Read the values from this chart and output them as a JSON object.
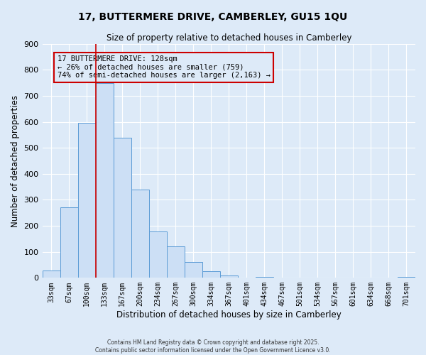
{
  "title_line1": "17, BUTTERMERE DRIVE, CAMBERLEY, GU15 1QU",
  "title_line2": "Size of property relative to detached houses in Camberley",
  "xlabel": "Distribution of detached houses by size in Camberley",
  "ylabel": "Number of detached properties",
  "bar_labels": [
    "33sqm",
    "67sqm",
    "100sqm",
    "133sqm",
    "167sqm",
    "200sqm",
    "234sqm",
    "267sqm",
    "300sqm",
    "334sqm",
    "367sqm",
    "401sqm",
    "434sqm",
    "467sqm",
    "501sqm",
    "534sqm",
    "567sqm",
    "601sqm",
    "634sqm",
    "668sqm",
    "701sqm"
  ],
  "bar_values": [
    27,
    270,
    597,
    750,
    540,
    340,
    178,
    120,
    62,
    25,
    10,
    0,
    5,
    0,
    0,
    0,
    0,
    0,
    0,
    0,
    5
  ],
  "bar_color": "#ccdff5",
  "bar_edge_color": "#5b9bd5",
  "ylim": [
    0,
    900
  ],
  "yticks": [
    0,
    100,
    200,
    300,
    400,
    500,
    600,
    700,
    800,
    900
  ],
  "vline_x_index": 3,
  "vline_color": "#cc0000",
  "annotation_title": "17 BUTTERMERE DRIVE: 128sqm",
  "annotation_line2": "← 26% of detached houses are smaller (759)",
  "annotation_line3": "74% of semi-detached houses are larger (2,163) →",
  "annotation_box_color": "#cc0000",
  "footnote1": "Contains HM Land Registry data © Crown copyright and database right 2025.",
  "footnote2": "Contains public sector information licensed under the Open Government Licence v3.0.",
  "background_color": "#ddeaf8",
  "plot_bg_color": "#ddeaf8",
  "grid_color": "#ffffff"
}
